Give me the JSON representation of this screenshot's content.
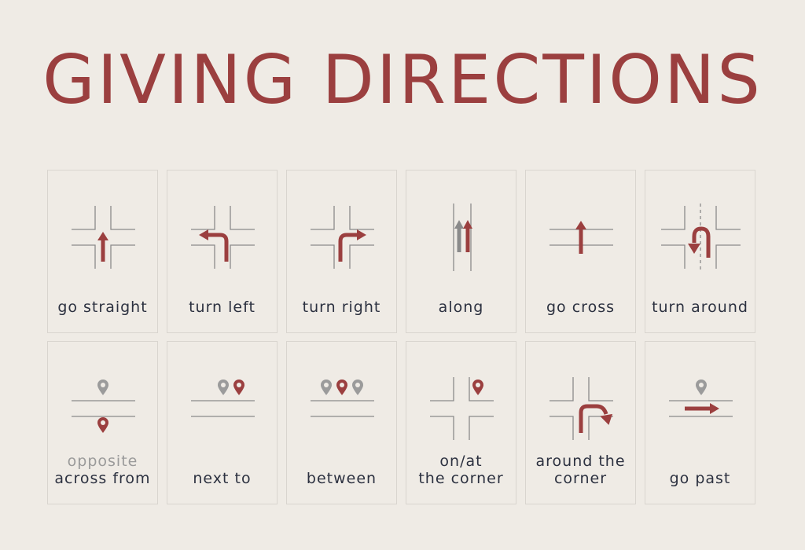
{
  "title": "GIVING DIRECTIONS",
  "colors": {
    "accent": "#9b3f3f",
    "line": "#8a8a8a",
    "gray_pin": "#9b9b9b",
    "text": "#2c3140",
    "muted": "#9a9a9a",
    "background": "#efebe5"
  },
  "cards": [
    {
      "icon": "intersection-straight-arrow-icon",
      "lines": [
        "go straight"
      ]
    },
    {
      "icon": "intersection-left-turn-arrow-icon",
      "lines": [
        "turn left"
      ]
    },
    {
      "icon": "intersection-right-turn-arrow-icon",
      "lines": [
        "turn right"
      ]
    },
    {
      "icon": "road-along-arrows-icon",
      "lines": [
        "along"
      ]
    },
    {
      "icon": "road-cross-arrow-icon",
      "lines": [
        "go cross"
      ]
    },
    {
      "icon": "intersection-u-turn-arrow-icon",
      "lines": [
        "turn around"
      ]
    },
    {
      "icon": "opposite-pins-icon",
      "lines": [
        "opposite",
        "across from"
      ]
    },
    {
      "icon": "next-to-pins-icon",
      "lines": [
        "next to"
      ]
    },
    {
      "icon": "between-pins-icon",
      "lines": [
        "between"
      ]
    },
    {
      "icon": "corner-pin-icon",
      "lines": [
        "on/at",
        "the corner"
      ]
    },
    {
      "icon": "around-corner-arrow-icon",
      "lines": [
        "around the",
        "corner"
      ]
    },
    {
      "icon": "go-past-arrow-icon",
      "lines": [
        "go past"
      ]
    }
  ]
}
